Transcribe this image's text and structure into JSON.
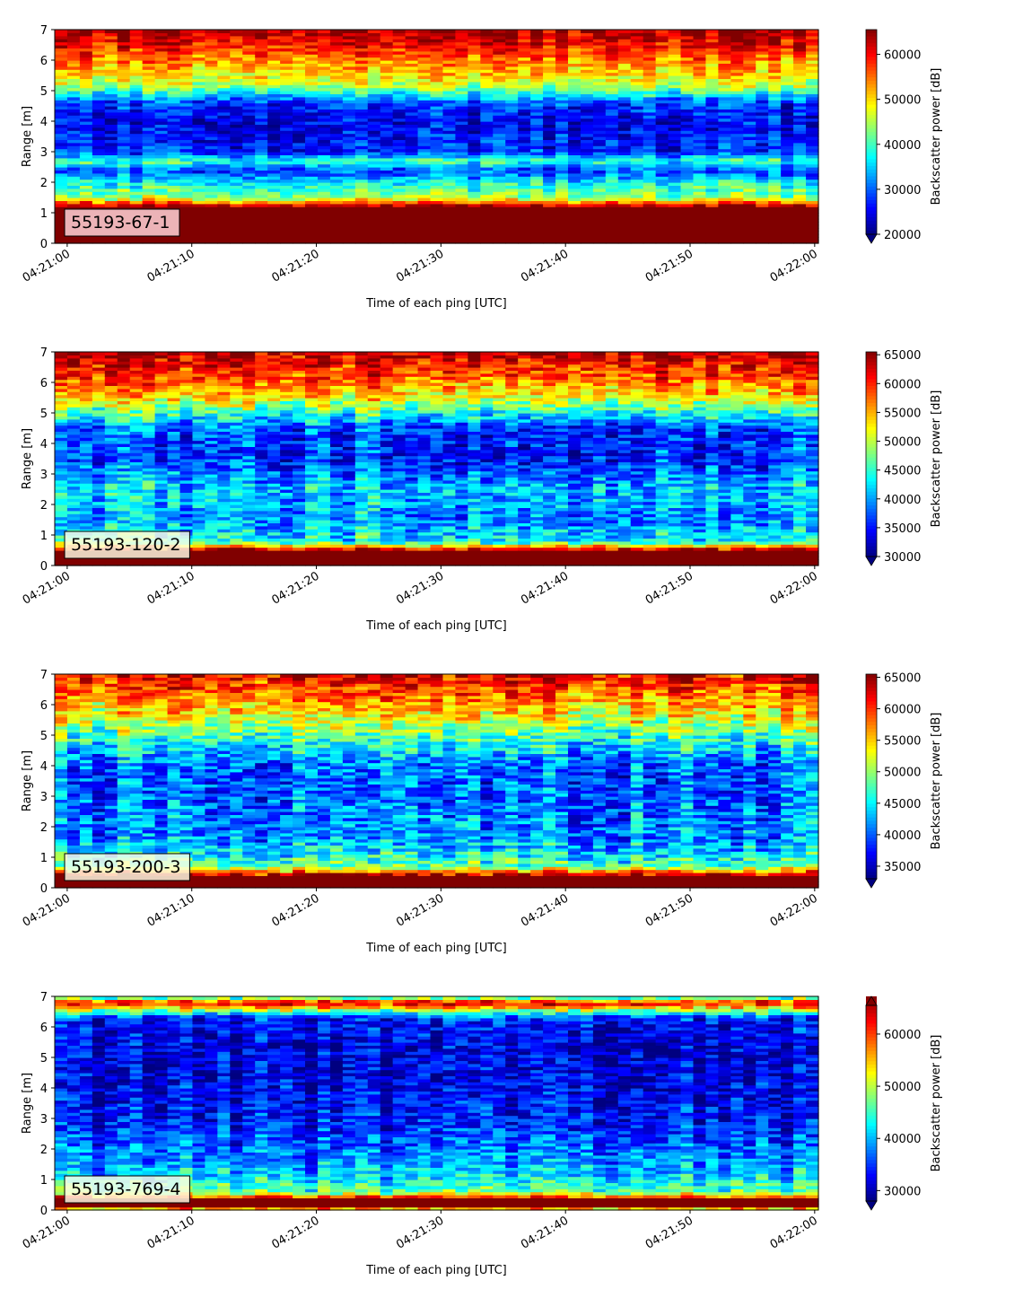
{
  "chart_data": [
    {
      "type": "heatmap",
      "label": "55193-67-1",
      "xlabel": "Time of each ping [UTC]",
      "ylabel": "Range [m]",
      "colorbar_label": "Backscatter power [dB]",
      "colormap": "jet",
      "xlim": [
        "04:21:00",
        "04:22:00"
      ],
      "xticks": [
        "04:21:00",
        "04:21:10",
        "04:21:20",
        "04:21:30",
        "04:21:40",
        "04:21:50",
        "04:22:00"
      ],
      "ylim": [
        0,
        7
      ],
      "yticks": [
        "0",
        "1",
        "2",
        "3",
        "4",
        "5",
        "6",
        "7"
      ],
      "clim": [
        20000,
        65500
      ],
      "colorbar_ticks": [
        20000,
        30000,
        40000,
        50000,
        60000
      ],
      "colorbar_extend": "min",
      "profile": {
        "range_m": [
          0.0,
          0.2,
          1.2,
          1.5,
          2.0,
          2.4,
          2.7,
          3.0,
          4.0,
          4.6,
          5.2,
          6.0,
          6.5,
          7.0
        ],
        "level": [
          65500,
          65500,
          65500,
          44000,
          37000,
          28000,
          40000,
          27000,
          25000,
          28000,
          46000,
          54000,
          60000,
          64000
        ]
      },
      "notes": "Strong return band 0.2-1.2 m; blue layer 3-4.5 m; bright layer near 2.6 m; red/orange near surface 5.5-7 m"
    },
    {
      "type": "heatmap",
      "label": "55193-120-2",
      "xlabel": "Time of each ping [UTC]",
      "ylabel": "Range [m]",
      "colorbar_label": "Backscatter power [dB]",
      "colormap": "jet",
      "xlim": [
        "04:21:00",
        "04:22:00"
      ],
      "xticks": [
        "04:21:00",
        "04:21:10",
        "04:21:20",
        "04:21:30",
        "04:21:40",
        "04:21:50",
        "04:22:00"
      ],
      "ylim": [
        0,
        7
      ],
      "yticks": [
        "0",
        "1",
        "2",
        "3",
        "4",
        "5",
        "6",
        "7"
      ],
      "clim": [
        30000,
        65500
      ],
      "colorbar_ticks": [
        30000,
        35000,
        40000,
        45000,
        50000,
        55000,
        60000,
        65000
      ],
      "colorbar_extend": "min",
      "profile": {
        "range_m": [
          0.0,
          0.1,
          0.5,
          0.8,
          1.5,
          2.5,
          3.5,
          4.5,
          5.0,
          5.6,
          6.2,
          7.0
        ],
        "level": [
          65500,
          65500,
          65500,
          44000,
          40000,
          42000,
          36000,
          37000,
          45000,
          54000,
          59000,
          64000
        ]
      },
      "notes": "Thin strong band 0.1-0.5 m; faint layer near 2.5 m"
    },
    {
      "type": "heatmap",
      "label": "55193-200-3",
      "xlabel": "Time of each ping [UTC]",
      "ylabel": "Range [m]",
      "colorbar_label": "Backscatter power [dB]",
      "colormap": "jet",
      "xlim": [
        "04:21:00",
        "04:22:00"
      ],
      "xticks": [
        "04:21:00",
        "04:21:10",
        "04:21:20",
        "04:21:30",
        "04:21:40",
        "04:21:50",
        "04:22:00"
      ],
      "ylim": [
        0,
        7
      ],
      "yticks": [
        "0",
        "1",
        "2",
        "3",
        "4",
        "5",
        "6",
        "7"
      ],
      "clim": [
        33000,
        65500
      ],
      "colorbar_ticks": [
        35000,
        40000,
        45000,
        50000,
        55000,
        60000,
        65000
      ],
      "colorbar_extend": "min",
      "profile": {
        "range_m": [
          0.0,
          0.1,
          0.4,
          0.7,
          1.5,
          3.0,
          4.0,
          4.8,
          5.5,
          6.2,
          7.0
        ],
        "level": [
          65500,
          65500,
          65500,
          48000,
          42000,
          40000,
          40000,
          46000,
          52000,
          57000,
          62000
        ]
      },
      "notes": "Thin strong band 0.1-0.4 m"
    },
    {
      "type": "heatmap",
      "label": "55193-769-4",
      "xlabel": "Time of each ping [UTC]",
      "ylabel": "Range [m]",
      "colorbar_label": "Backscatter power [dB]",
      "colormap": "jet",
      "xlim": [
        "04:21:00",
        "04:22:00"
      ],
      "xticks": [
        "04:21:00",
        "04:21:10",
        "04:21:20",
        "04:21:30",
        "04:21:40",
        "04:21:50",
        "04:22:00"
      ],
      "ylim": [
        0,
        7
      ],
      "yticks": [
        "0",
        "1",
        "2",
        "3",
        "4",
        "5",
        "6",
        "7"
      ],
      "clim": [
        28000,
        65500
      ],
      "colorbar_ticks": [
        30000,
        40000,
        50000,
        60000
      ],
      "colorbar_extend": "both",
      "profile": {
        "range_m": [
          0.0,
          0.15,
          0.35,
          0.6,
          1.2,
          2.0,
          3.0,
          4.5,
          5.5,
          6.3,
          6.6,
          6.8,
          7.0
        ],
        "level": [
          48000,
          65500,
          65500,
          45000,
          40000,
          36000,
          33000,
          31000,
          31000,
          33000,
          50000,
          62000,
          40000
        ]
      },
      "notes": "Strong band 0.15-0.35 m; mostly dark blue column; bright near 6.6-6.9 m"
    }
  ]
}
